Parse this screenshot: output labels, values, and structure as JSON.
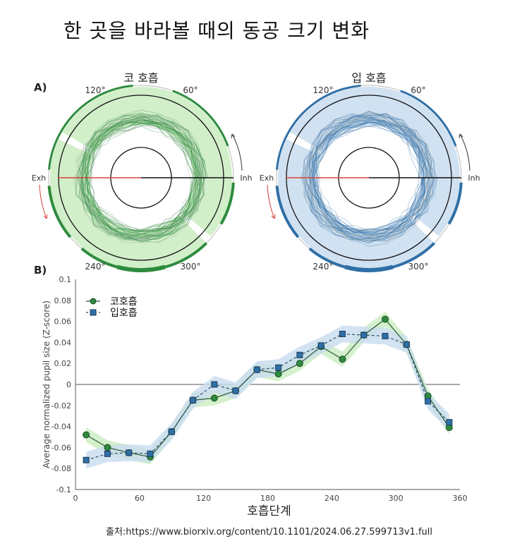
{
  "title": "한 곳을 바라볼 때의 동공 크기 변화",
  "panel_a_label": "A)",
  "panel_b_label": "B)",
  "source": "출처:https://www.biorxiv.org/content/10.1101/2024.06.27.599713v1.full",
  "colors": {
    "nose": "#2e8b3e",
    "nose_fill": "#c9ecc0",
    "mouth": "#2f6fa6",
    "mouth_fill": "#c8dcef",
    "exhale_arrow": "#d9423a"
  },
  "chart_data": [
    {
      "type": "polar",
      "title": "코 호흡",
      "angle_labels": [
        "120°",
        "60°",
        "240°",
        "300°"
      ],
      "left_label": "Exh",
      "right_label": "Inh",
      "series_color": "nose",
      "shaded_sector_deg": [
        -40,
        150
      ]
    },
    {
      "type": "polar",
      "title": "입 호흡",
      "angle_labels": [
        "120°",
        "60°",
        "240°",
        "300°"
      ],
      "left_label": "Exh",
      "right_label": "Inh",
      "series_color": "mouth",
      "shaded_sector_deg": [
        -40,
        150
      ]
    },
    {
      "type": "line",
      "title": "",
      "xlabel": "호흡단계",
      "ylabel": "Average normalized pupil size (Z-score)",
      "xlim": [
        0,
        360
      ],
      "ylim": [
        -0.1,
        0.1
      ],
      "xticks": [
        "0",
        "60",
        "120",
        "180",
        "240",
        "300",
        "360"
      ],
      "yticks": [
        "0.1",
        "0.08",
        "0.06",
        "0.04",
        "0.02",
        "0",
        "-0.02",
        "-0.04",
        "-0.06",
        "-0.08",
        "-0.1"
      ],
      "legend_position": "top-left",
      "x": [
        10,
        30,
        50,
        70,
        90,
        110,
        130,
        150,
        170,
        190,
        210,
        230,
        250,
        270,
        290,
        310,
        330,
        350
      ],
      "series": [
        {
          "name": "코호흡",
          "marker": "circle",
          "line": "solid",
          "values": [
            -0.048,
            -0.06,
            -0.065,
            -0.069,
            -0.045,
            -0.015,
            -0.013,
            -0.006,
            0.014,
            0.01,
            0.02,
            0.036,
            0.024,
            0.047,
            0.062,
            0.038,
            -0.011,
            -0.041
          ],
          "ci": 0.007
        },
        {
          "name": "입호흡",
          "marker": "square",
          "line": "dashed",
          "values": [
            -0.072,
            -0.066,
            -0.065,
            -0.066,
            -0.045,
            -0.015,
            0.0,
            -0.006,
            0.014,
            0.016,
            0.028,
            0.037,
            0.048,
            0.047,
            0.046,
            0.038,
            -0.016,
            -0.036
          ],
          "ci": 0.008
        }
      ]
    }
  ]
}
